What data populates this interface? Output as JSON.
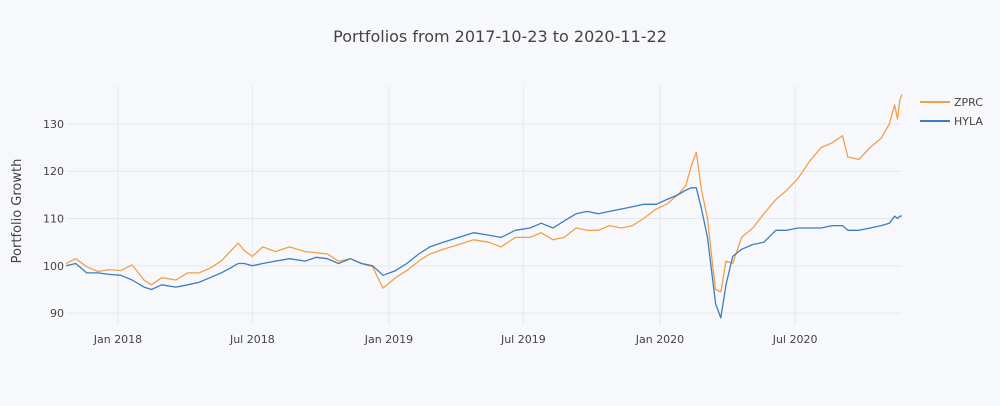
{
  "chart_data": {
    "type": "line",
    "title": "Portfolios from 2017-10-23 to 2020-11-22",
    "xlabel": "",
    "ylabel": "Portfolio Growth",
    "xlim": [
      "2017-10-23",
      "2020-11-22"
    ],
    "ylim": [
      87.5,
      138
    ],
    "grid": true,
    "legend_position": "top-right",
    "x_ticks": [
      {
        "date": "2018-01-01",
        "label": "Jan 2018"
      },
      {
        "date": "2018-07-01",
        "label": "Jul 2018"
      },
      {
        "date": "2019-01-01",
        "label": "Jan 2019"
      },
      {
        "date": "2019-07-01",
        "label": "Jul 2019"
      },
      {
        "date": "2020-01-01",
        "label": "Jan 2020"
      },
      {
        "date": "2020-07-01",
        "label": "Jul 2020"
      }
    ],
    "y_ticks": [
      90,
      100,
      110,
      120,
      130
    ],
    "series": [
      {
        "name": "ZPRC",
        "color": "#f2a04a",
        "points": [
          [
            "2017-10-23",
            100.5
          ],
          [
            "2017-11-05",
            101.5
          ],
          [
            "2017-11-20",
            99.8
          ],
          [
            "2017-12-05",
            98.8
          ],
          [
            "2017-12-20",
            99.2
          ],
          [
            "2018-01-05",
            99.0
          ],
          [
            "2018-01-20",
            100.2
          ],
          [
            "2018-02-05",
            97.0
          ],
          [
            "2018-02-15",
            96.0
          ],
          [
            "2018-03-01",
            97.5
          ],
          [
            "2018-03-20",
            97.0
          ],
          [
            "2018-04-05",
            98.5
          ],
          [
            "2018-04-20",
            98.5
          ],
          [
            "2018-05-05",
            99.5
          ],
          [
            "2018-05-20",
            101.0
          ],
          [
            "2018-06-01",
            103.0
          ],
          [
            "2018-06-12",
            104.8
          ],
          [
            "2018-06-20",
            103.2
          ],
          [
            "2018-07-01",
            102.0
          ],
          [
            "2018-07-15",
            104.0
          ],
          [
            "2018-08-01",
            103.0
          ],
          [
            "2018-08-20",
            104.0
          ],
          [
            "2018-09-10",
            103.0
          ],
          [
            "2018-09-25",
            102.8
          ],
          [
            "2018-10-10",
            102.5
          ],
          [
            "2018-10-25",
            101.0
          ],
          [
            "2018-11-10",
            101.5
          ],
          [
            "2018-11-25",
            100.5
          ],
          [
            "2018-12-10",
            99.8
          ],
          [
            "2018-12-24",
            95.3
          ],
          [
            "2019-01-10",
            97.5
          ],
          [
            "2019-01-25",
            99.0
          ],
          [
            "2019-02-10",
            101.0
          ],
          [
            "2019-02-25",
            102.5
          ],
          [
            "2019-03-15",
            103.5
          ],
          [
            "2019-04-05",
            104.5
          ],
          [
            "2019-04-25",
            105.5
          ],
          [
            "2019-05-15",
            105.0
          ],
          [
            "2019-06-01",
            104.0
          ],
          [
            "2019-06-20",
            106.0
          ],
          [
            "2019-07-10",
            106.0
          ],
          [
            "2019-07-25",
            107.0
          ],
          [
            "2019-08-10",
            105.5
          ],
          [
            "2019-08-25",
            106.0
          ],
          [
            "2019-09-10",
            108.0
          ],
          [
            "2019-09-25",
            107.5
          ],
          [
            "2019-10-10",
            107.5
          ],
          [
            "2019-10-25",
            108.5
          ],
          [
            "2019-11-10",
            108.0
          ],
          [
            "2019-11-25",
            108.5
          ],
          [
            "2019-12-10",
            110.0
          ],
          [
            "2019-12-27",
            112.0
          ],
          [
            "2020-01-10",
            113.0
          ],
          [
            "2020-01-25",
            115.0
          ],
          [
            "2020-02-05",
            117.0
          ],
          [
            "2020-02-12",
            121.0
          ],
          [
            "2020-02-19",
            124.0
          ],
          [
            "2020-02-26",
            116.0
          ],
          [
            "2020-03-05",
            110.0
          ],
          [
            "2020-03-12",
            100.0
          ],
          [
            "2020-03-16",
            95.0
          ],
          [
            "2020-03-23",
            94.5
          ],
          [
            "2020-03-30",
            101.0
          ],
          [
            "2020-04-08",
            100.5
          ],
          [
            "2020-04-20",
            106.0
          ],
          [
            "2020-05-05",
            108.0
          ],
          [
            "2020-05-20",
            111.0
          ],
          [
            "2020-06-05",
            114.0
          ],
          [
            "2020-06-20",
            116.0
          ],
          [
            "2020-07-05",
            118.5
          ],
          [
            "2020-07-20",
            122.0
          ],
          [
            "2020-08-05",
            125.0
          ],
          [
            "2020-08-20",
            126.0
          ],
          [
            "2020-09-03",
            127.5
          ],
          [
            "2020-09-10",
            123.0
          ],
          [
            "2020-09-25",
            122.5
          ],
          [
            "2020-10-10",
            125.0
          ],
          [
            "2020-10-25",
            127.0
          ],
          [
            "2020-11-05",
            130.0
          ],
          [
            "2020-11-12",
            134.0
          ],
          [
            "2020-11-16",
            131.0
          ],
          [
            "2020-11-19",
            135.0
          ],
          [
            "2020-11-22",
            136.2
          ]
        ]
      },
      {
        "name": "HYLA",
        "color": "#3d7cc0",
        "points": [
          [
            "2017-10-23",
            100.0
          ],
          [
            "2017-11-05",
            100.5
          ],
          [
            "2017-11-20",
            98.5
          ],
          [
            "2017-12-05",
            98.5
          ],
          [
            "2017-12-20",
            98.2
          ],
          [
            "2018-01-05",
            98.0
          ],
          [
            "2018-01-20",
            97.0
          ],
          [
            "2018-02-05",
            95.5
          ],
          [
            "2018-02-15",
            95.0
          ],
          [
            "2018-03-01",
            96.0
          ],
          [
            "2018-03-20",
            95.5
          ],
          [
            "2018-04-05",
            96.0
          ],
          [
            "2018-04-20",
            96.5
          ],
          [
            "2018-05-05",
            97.5
          ],
          [
            "2018-05-20",
            98.5
          ],
          [
            "2018-06-01",
            99.5
          ],
          [
            "2018-06-12",
            100.5
          ],
          [
            "2018-06-20",
            100.5
          ],
          [
            "2018-07-01",
            100.0
          ],
          [
            "2018-07-15",
            100.5
          ],
          [
            "2018-08-01",
            101.0
          ],
          [
            "2018-08-20",
            101.5
          ],
          [
            "2018-09-10",
            101.0
          ],
          [
            "2018-09-25",
            101.8
          ],
          [
            "2018-10-10",
            101.5
          ],
          [
            "2018-10-25",
            100.5
          ],
          [
            "2018-11-10",
            101.5
          ],
          [
            "2018-11-25",
            100.5
          ],
          [
            "2018-12-10",
            100.0
          ],
          [
            "2018-12-24",
            98.0
          ],
          [
            "2019-01-10",
            99.0
          ],
          [
            "2019-01-25",
            100.5
          ],
          [
            "2019-02-10",
            102.5
          ],
          [
            "2019-02-25",
            104.0
          ],
          [
            "2019-03-15",
            105.0
          ],
          [
            "2019-04-05",
            106.0
          ],
          [
            "2019-04-25",
            107.0
          ],
          [
            "2019-05-15",
            106.5
          ],
          [
            "2019-06-01",
            106.0
          ],
          [
            "2019-06-20",
            107.5
          ],
          [
            "2019-07-10",
            108.0
          ],
          [
            "2019-07-25",
            109.0
          ],
          [
            "2019-08-10",
            108.0
          ],
          [
            "2019-08-25",
            109.5
          ],
          [
            "2019-09-10",
            111.0
          ],
          [
            "2019-09-25",
            111.5
          ],
          [
            "2019-10-10",
            111.0
          ],
          [
            "2019-10-25",
            111.5
          ],
          [
            "2019-11-10",
            112.0
          ],
          [
            "2019-11-25",
            112.5
          ],
          [
            "2019-12-10",
            113.0
          ],
          [
            "2019-12-27",
            113.0
          ],
          [
            "2020-01-10",
            114.0
          ],
          [
            "2020-01-25",
            115.0
          ],
          [
            "2020-02-05",
            116.0
          ],
          [
            "2020-02-12",
            116.5
          ],
          [
            "2020-02-19",
            116.5
          ],
          [
            "2020-02-26",
            112.0
          ],
          [
            "2020-03-05",
            106.0
          ],
          [
            "2020-03-12",
            97.0
          ],
          [
            "2020-03-16",
            92.0
          ],
          [
            "2020-03-23",
            89.0
          ],
          [
            "2020-03-30",
            96.0
          ],
          [
            "2020-04-08",
            102.0
          ],
          [
            "2020-04-20",
            103.5
          ],
          [
            "2020-05-05",
            104.5
          ],
          [
            "2020-05-20",
            105.0
          ],
          [
            "2020-06-05",
            107.5
          ],
          [
            "2020-06-20",
            107.5
          ],
          [
            "2020-07-05",
            108.0
          ],
          [
            "2020-07-20",
            108.0
          ],
          [
            "2020-08-05",
            108.0
          ],
          [
            "2020-08-20",
            108.5
          ],
          [
            "2020-09-03",
            108.5
          ],
          [
            "2020-09-10",
            107.5
          ],
          [
            "2020-09-25",
            107.5
          ],
          [
            "2020-10-10",
            108.0
          ],
          [
            "2020-10-25",
            108.5
          ],
          [
            "2020-11-05",
            109.0
          ],
          [
            "2020-11-12",
            110.5
          ],
          [
            "2020-11-16",
            110.0
          ],
          [
            "2020-11-19",
            110.5
          ],
          [
            "2020-11-22",
            110.5
          ]
        ]
      }
    ]
  }
}
